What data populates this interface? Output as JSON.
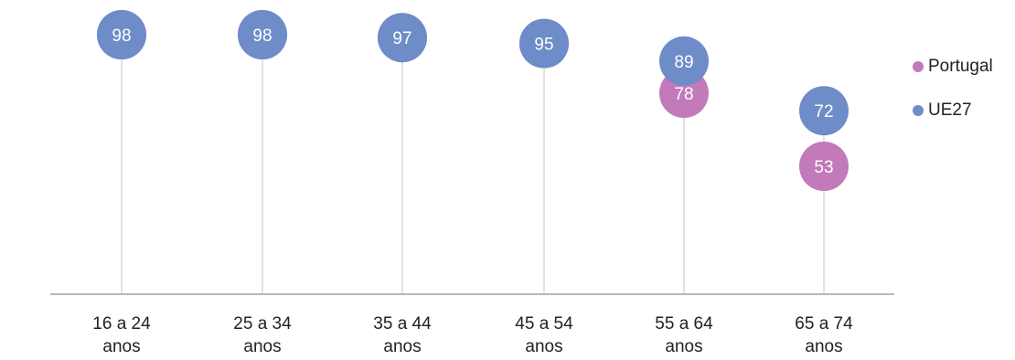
{
  "chart_data": {
    "type": "dot-plot",
    "title": "",
    "xlabel": "",
    "ylabel": "",
    "ylim": [
      0,
      100
    ],
    "grid": false,
    "legend_position": "right",
    "categories": [
      [
        "16 a 24",
        "anos"
      ],
      [
        "25 a 34",
        "anos"
      ],
      [
        "35 a 44",
        "anos"
      ],
      [
        "45 a 54",
        "anos"
      ],
      [
        "55 a 64",
        "anos"
      ],
      [
        "65 a 74",
        "anos"
      ]
    ],
    "series": [
      {
        "name": "Portugal",
        "color": "#c27abb",
        "values": [
          98,
          98,
          97,
          95,
          78,
          53
        ]
      },
      {
        "name": "UE27",
        "color": "#6e8cc7",
        "values": [
          98,
          98,
          97,
          95,
          89,
          72
        ]
      }
    ]
  },
  "legend": {
    "items": [
      {
        "label": "Portugal",
        "color": "#c27abb"
      },
      {
        "label": "UE27",
        "color": "#6e8cc7"
      }
    ]
  }
}
